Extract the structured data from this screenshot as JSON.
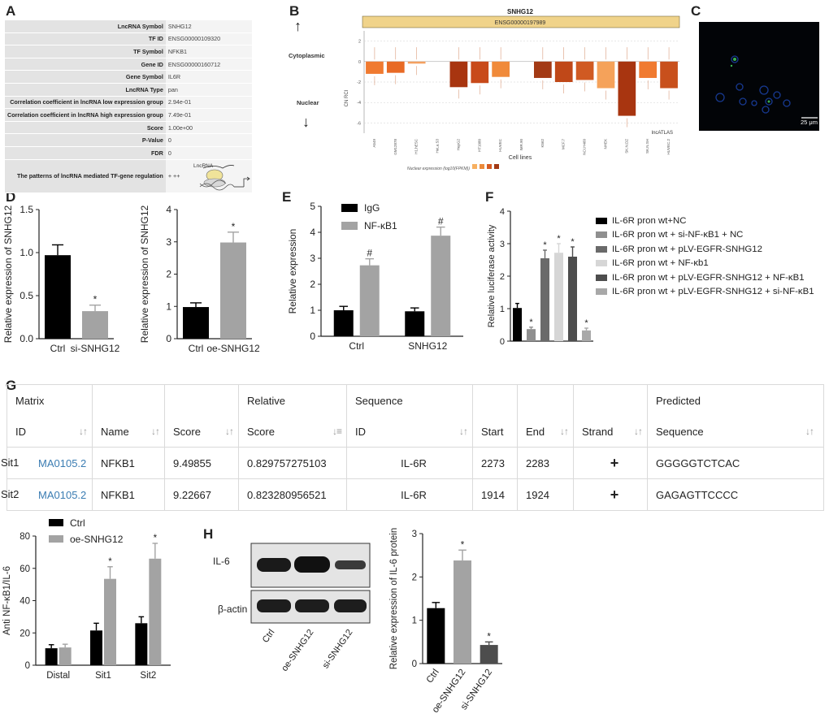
{
  "panels": {
    "A": "A",
    "B": "B",
    "C": "C",
    "D": "D",
    "E": "E",
    "F": "F",
    "G": "G",
    "H": "H"
  },
  "panel_a": {
    "rows": [
      {
        "key": "LncRNA Symbol",
        "value": "SNHG12"
      },
      {
        "key": "TF ID",
        "value": "ENSG00000109320"
      },
      {
        "key": "TF Symbol",
        "value": "NFKB1"
      },
      {
        "key": "Gene ID",
        "value": "ENSG00000160712"
      },
      {
        "key": "Gene Symbol",
        "value": "IL6R"
      },
      {
        "key": "LncRNA Type",
        "value": "pan"
      },
      {
        "key": "Correlation coefficient in lncRNA low expression group",
        "value": "2.94e-01"
      },
      {
        "key": "Correlation coefficient in lncRNA high expression group",
        "value": "7.49e-01"
      },
      {
        "key": "Score",
        "value": "1.00e+00"
      },
      {
        "key": "P-Value",
        "value": "0"
      },
      {
        "key": "FDR",
        "value": "0"
      },
      {
        "key": "The patterns of lncRNA mediated TF-gene regulation",
        "value": "+ ++"
      }
    ],
    "diagram_label": "LncRNA"
  },
  "panel_b": {
    "gene": "SNHG12",
    "gene_id": "ENSG00000197989",
    "cytoplasmic": "Cytoplasmic",
    "nuclear": "Nuclear",
    "up_arrow": "↑",
    "down_arrow": "↓",
    "ylabel": "CN RCI",
    "xlabel": "Cell lines",
    "source": "lncATLAS",
    "legend_title": "Nuclear expression (log10(FPKM))"
  },
  "panel_c": {
    "scale_bar": "25 μm"
  },
  "chart_data": [
    {
      "id": "D-left",
      "type": "bar",
      "categories": [
        "Ctrl",
        "si-SNHG12"
      ],
      "values": [
        0.97,
        0.32
      ],
      "errors": [
        0.12,
        0.07
      ],
      "significance": [
        "",
        "*"
      ],
      "ylabel": "Relative expression of SNHG12",
      "ylim": [
        0,
        1.5
      ],
      "yticks": [
        "0.0",
        "0.5",
        "1.0",
        "1.5"
      ],
      "colors": [
        "#000000",
        "#a3a3a3"
      ]
    },
    {
      "id": "D-right",
      "type": "bar",
      "categories": [
        "Ctrl",
        "oe-SNHG12"
      ],
      "values": [
        0.98,
        2.98
      ],
      "errors": [
        0.13,
        0.32
      ],
      "significance": [
        "",
        "*"
      ],
      "ylabel": "Relative expression of SNHG12",
      "ylim": [
        0,
        4
      ],
      "yticks": [
        "0",
        "1",
        "2",
        "3",
        "4"
      ],
      "colors": [
        "#000000",
        "#a3a3a3"
      ]
    },
    {
      "id": "E",
      "type": "bar",
      "categories": [
        "Ctrl",
        "SNHG12"
      ],
      "series": [
        {
          "name": "IgG",
          "values": [
            1.0,
            0.96
          ],
          "errors": [
            0.15,
            0.13
          ],
          "significance": [
            "",
            ""
          ],
          "color": "#000000"
        },
        {
          "name": "NF-κB1",
          "values": [
            2.73,
            3.87
          ],
          "errors": [
            0.25,
            0.33
          ],
          "significance": [
            "#",
            "#"
          ],
          "color": "#a3a3a3"
        }
      ],
      "ylabel": "Relative expression",
      "ylim": [
        0,
        5
      ],
      "yticks": [
        "0",
        "1",
        "2",
        "3",
        "4",
        "5"
      ]
    },
    {
      "id": "F",
      "type": "bar",
      "categories": [
        "IL-6R pron wt+NC",
        "IL-6R pron wt + si-NF-κB1 + NC",
        "IL-6R pron wt + pLV-EGFR-SNHG12",
        "IL-6R pron wt + NF-κb1",
        "IL-6R pron wt + pLV-EGFR-SNHG12 + NF-κB1",
        "IL-6R pron wt + pLV-EGFR-SNHG12 + si-NF-κB1"
      ],
      "values": [
        1.02,
        0.37,
        2.55,
        2.72,
        2.6,
        0.33
      ],
      "errors": [
        0.14,
        0.06,
        0.25,
        0.28,
        0.3,
        0.07
      ],
      "significance": [
        "",
        "*",
        "*",
        "*",
        "*",
        "*"
      ],
      "colors": [
        "#000000",
        "#8f8f8f",
        "#6a6a6a",
        "#d6d6d6",
        "#4d4d4d",
        "#a8a8a8"
      ],
      "ylabel": "Relative luciferase activity",
      "ylim": [
        0,
        4
      ],
      "yticks": [
        "0",
        "1",
        "2",
        "3",
        "4"
      ]
    },
    {
      "id": "G-bottom",
      "type": "bar",
      "categories": [
        "Distal",
        "Sit1",
        "Sit2"
      ],
      "series": [
        {
          "name": "Ctrl",
          "values": [
            10.5,
            21.5,
            26.0
          ],
          "errors": [
            2.2,
            4.5,
            4.0
          ],
          "significance": [
            "",
            "",
            ""
          ],
          "color": "#000000"
        },
        {
          "name": "oe-SNHG12",
          "values": [
            11.0,
            53.5,
            66.0
          ],
          "errors": [
            2.0,
            7.5,
            9.5
          ],
          "significance": [
            "",
            "*",
            "*"
          ],
          "color": "#a3a3a3"
        }
      ],
      "ylabel": "Anti NF-κB1/IL-6",
      "ylim": [
        0,
        80
      ],
      "yticks": [
        "0",
        "20",
        "40",
        "60",
        "80"
      ]
    },
    {
      "id": "H-right",
      "type": "bar",
      "categories": [
        "Ctrl",
        "oe-SNHG12",
        "si-SNHG12"
      ],
      "values": [
        1.28,
        2.38,
        0.43
      ],
      "errors": [
        0.13,
        0.24,
        0.07
      ],
      "significance": [
        "",
        "*",
        "*"
      ],
      "colors": [
        "#000000",
        "#a3a3a3",
        "#4d4d4d"
      ],
      "ylabel": "Relative expression of IL-6 protein",
      "ylim": [
        0,
        3
      ],
      "yticks": [
        "0",
        "1",
        "2",
        "3"
      ]
    },
    {
      "id": "B-rci",
      "type": "bar",
      "categories": [
        "A549",
        "GM12878",
        "H1.hESC",
        "HeLa.S3",
        "HepG2",
        "HT1080",
        "HUVEC",
        "IMR.90",
        "K562",
        "MCF.7",
        "NCI.H460",
        "NHEK",
        "SK.N.DZ",
        "SK.N.SH",
        "HUVEC.2"
      ],
      "values": [
        -1.2,
        -1.1,
        -0.2,
        null,
        -2.5,
        -2.1,
        -1.5,
        null,
        -1.6,
        -2.0,
        -1.8,
        -2.6,
        -5.3,
        -1.6,
        -2.6
      ],
      "ylim": [
        -7,
        3
      ],
      "yticks": [
        "2",
        "0",
        "-2",
        "-4",
        "-6"
      ]
    }
  ],
  "panel_g": {
    "header1": [
      "Matrix",
      "",
      "",
      "Relative",
      "Sequence",
      "",
      "",
      "",
      "Predicted"
    ],
    "header2": [
      "ID",
      "Name",
      "Score",
      "Score",
      "ID",
      "Start",
      "End",
      "Strand",
      "Sequence"
    ],
    "rows": [
      {
        "site": "Sit1",
        "id": "MA0105.2",
        "name": "NFKB1",
        "score": "9.49855",
        "rel": "0.829757275103",
        "seq_id": "IL-6R",
        "start": "2273",
        "end": "2283",
        "strand": "+",
        "seq": "GGGGGTCTCAC"
      },
      {
        "site": "Sit2",
        "id": "MA0105.2",
        "name": "NFKB1",
        "score": "9.22667",
        "rel": "0.823280956521",
        "seq_id": "IL-6R",
        "start": "1914",
        "end": "1924",
        "strand": "+",
        "seq": "GAGAGTTCCCC"
      }
    ]
  },
  "panel_h": {
    "blots": [
      "IL-6",
      "β-actin"
    ],
    "lanes": [
      "Ctrl",
      "oe-SNHG12",
      "si-SNHG12"
    ]
  }
}
